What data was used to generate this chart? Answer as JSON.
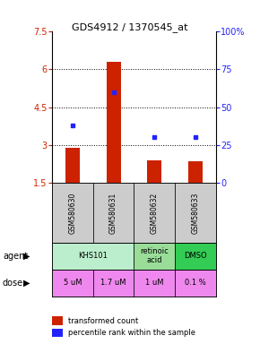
{
  "title": "GDS4912 / 1370545_at",
  "samples": [
    "GSM580630",
    "GSM580631",
    "GSM580632",
    "GSM580633"
  ],
  "bar_values": [
    2.9,
    6.3,
    2.4,
    2.35
  ],
  "dot_values": [
    38,
    60,
    30,
    30
  ],
  "ylim_left": [
    1.5,
    7.5
  ],
  "ylim_right": [
    0,
    100
  ],
  "yticks_left": [
    1.5,
    3.0,
    4.5,
    6.0,
    7.5
  ],
  "ytick_labels_left": [
    "1.5",
    "3",
    "4.5",
    "6",
    "7.5"
  ],
  "yticks_right": [
    0,
    25,
    50,
    75,
    100
  ],
  "ytick_labels_right": [
    "0",
    "25",
    "50",
    "75",
    "100%"
  ],
  "bar_color": "#CC2200",
  "dot_color": "#2222FF",
  "bar_bottom": 1.5,
  "agent_row": [
    {
      "label": "KHS101",
      "span": [
        0,
        2
      ],
      "color": "#BBEECC"
    },
    {
      "label": "retinoic\nacid",
      "span": [
        2,
        3
      ],
      "color": "#99DD99"
    },
    {
      "label": "DMSO",
      "span": [
        3,
        4
      ],
      "color": "#33CC55"
    }
  ],
  "dose_row": [
    {
      "label": "5 uM",
      "span": [
        0,
        1
      ],
      "color": "#EE88EE"
    },
    {
      "label": "1.7 uM",
      "span": [
        1,
        2
      ],
      "color": "#EE88EE"
    },
    {
      "label": "1 uM",
      "span": [
        2,
        3
      ],
      "color": "#EE88EE"
    },
    {
      "label": "0.1 %",
      "span": [
        3,
        4
      ],
      "color": "#EE88EE"
    }
  ],
  "legend_bar_label": "transformed count",
  "legend_dot_label": "percentile rank within the sample",
  "agent_label": "agent",
  "dose_label": "dose",
  "grid_yticks": [
    3.0,
    4.5,
    6.0
  ],
  "sample_bg_color": "#CCCCCC",
  "bar_width": 0.35
}
